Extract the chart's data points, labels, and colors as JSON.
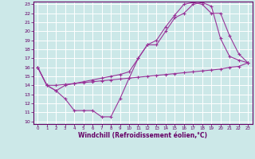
{
  "xlabel": "Windchill (Refroidissement éolien,°C)",
  "bg_color": "#cce8e8",
  "grid_color": "#ffffff",
  "line_color": "#993399",
  "xlim": [
    -0.5,
    23.5
  ],
  "ylim": [
    9.7,
    23.3
  ],
  "xticks": [
    0,
    1,
    2,
    3,
    4,
    5,
    6,
    7,
    8,
    9,
    10,
    11,
    12,
    13,
    14,
    15,
    16,
    17,
    18,
    19,
    20,
    21,
    22,
    23
  ],
  "yticks": [
    10,
    11,
    12,
    13,
    14,
    15,
    16,
    17,
    18,
    19,
    20,
    21,
    22,
    23
  ],
  "line1_x": [
    0,
    1,
    2,
    3,
    4,
    5,
    6,
    7,
    8,
    9,
    10,
    11,
    12,
    13,
    14,
    15,
    16,
    17,
    18,
    19,
    20,
    21,
    22,
    23
  ],
  "line1_y": [
    16.0,
    14.0,
    13.4,
    12.5,
    11.2,
    11.2,
    11.2,
    10.5,
    10.5,
    12.5,
    14.8,
    17.0,
    18.5,
    18.5,
    20.0,
    21.5,
    22.0,
    23.0,
    23.2,
    22.8,
    19.2,
    17.2,
    16.8,
    16.5
  ],
  "line2_x": [
    0,
    1,
    2,
    3,
    4,
    5,
    6,
    7,
    8,
    9,
    10,
    11,
    12,
    13,
    14,
    15,
    16,
    17,
    18,
    19,
    20,
    21,
    22,
    23
  ],
  "line2_y": [
    16.0,
    14.0,
    14.0,
    14.1,
    14.2,
    14.3,
    14.4,
    14.5,
    14.6,
    14.7,
    14.8,
    14.9,
    15.0,
    15.1,
    15.2,
    15.3,
    15.4,
    15.5,
    15.6,
    15.7,
    15.8,
    16.0,
    16.1,
    16.5
  ],
  "line3_x": [
    0,
    1,
    2,
    3,
    4,
    5,
    6,
    7,
    8,
    9,
    10,
    11,
    12,
    13,
    14,
    15,
    16,
    17,
    18,
    19,
    20,
    21,
    22,
    23
  ],
  "line3_y": [
    16.0,
    14.0,
    13.4,
    14.0,
    14.2,
    14.4,
    14.6,
    14.8,
    15.0,
    15.2,
    15.5,
    17.0,
    18.5,
    19.0,
    20.5,
    21.8,
    23.0,
    23.2,
    23.0,
    22.0,
    22.0,
    19.5,
    17.5,
    16.5
  ]
}
